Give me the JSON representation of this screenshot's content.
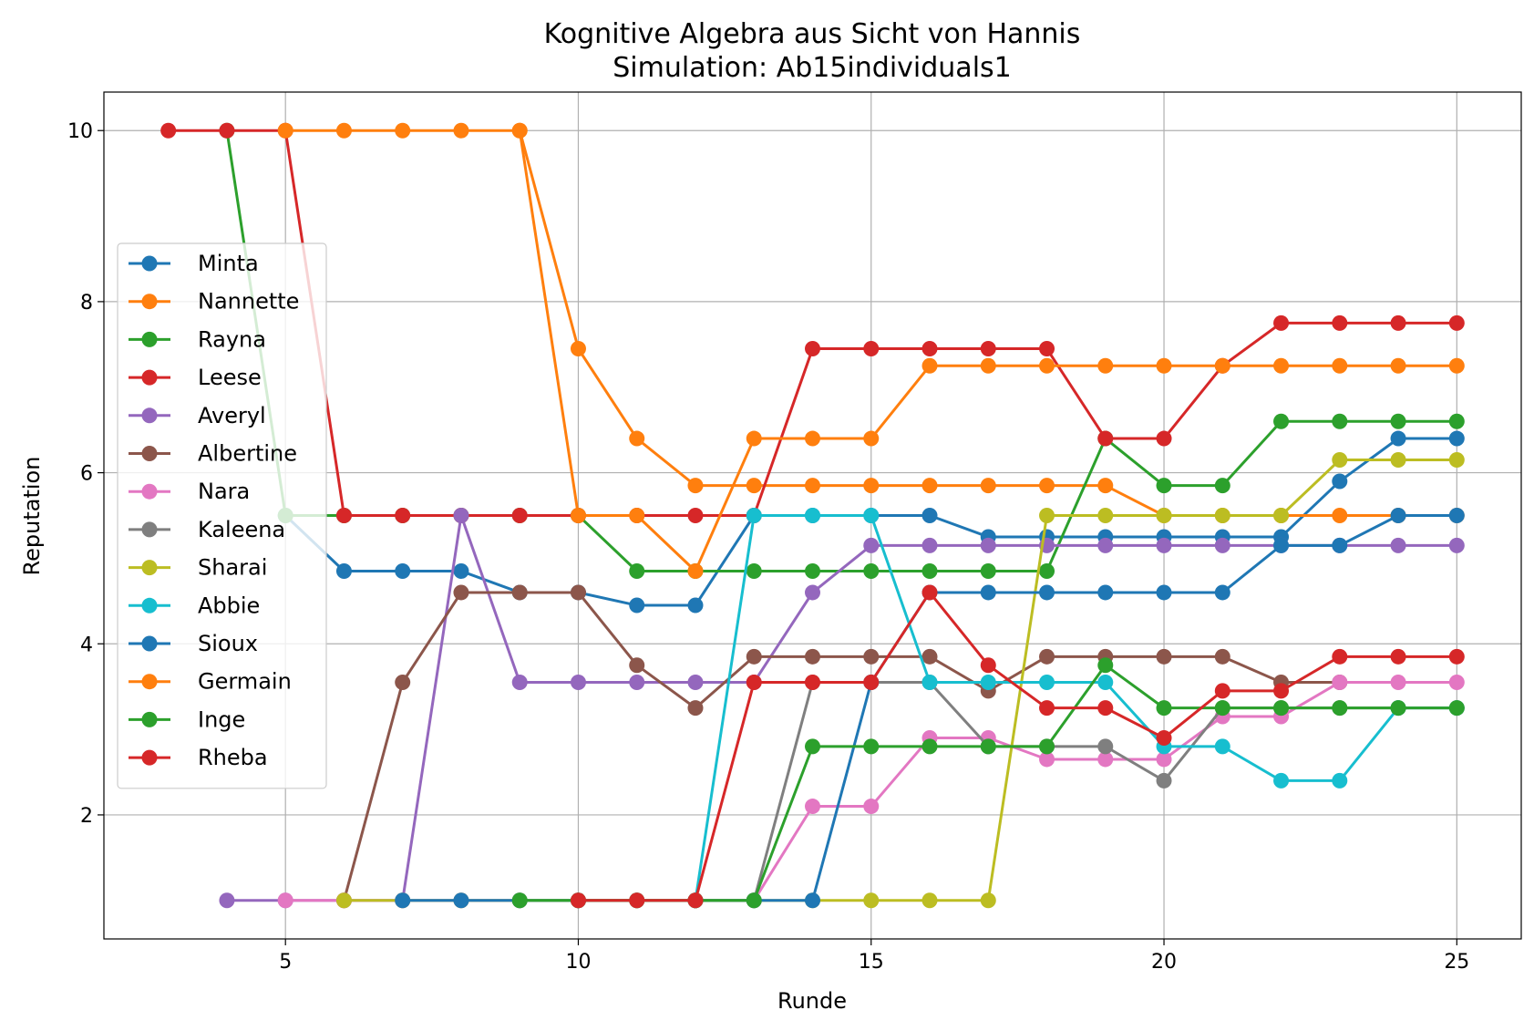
{
  "chart_data": {
    "type": "line",
    "title": "Kognitive Algebra aus Sicht von Hannis",
    "subtitle": "Simulation: Ab15individuals1",
    "xlabel": "Runde",
    "ylabel": "Reputation",
    "xlim": [
      1.9,
      26.1
    ],
    "ylim": [
      0.55,
      10.45
    ],
    "xticks": [
      5,
      10,
      15,
      20,
      25
    ],
    "yticks": [
      2,
      4,
      6,
      8,
      10
    ],
    "grid": true,
    "legend_position": "center-left",
    "series": [
      {
        "name": "Minta",
        "color": "#1f77b4",
        "x": [
          5,
          6,
          7,
          8,
          9,
          10,
          11,
          12,
          13,
          14,
          15,
          16,
          17,
          18,
          19,
          20,
          21,
          22,
          23,
          24,
          25
        ],
        "y": [
          5.5,
          4.85,
          4.85,
          4.85,
          4.6,
          4.6,
          4.45,
          4.45,
          5.5,
          5.5,
          5.5,
          5.5,
          5.25,
          5.25,
          5.25,
          5.25,
          5.25,
          5.25,
          5.9,
          6.4,
          6.4
        ]
      },
      {
        "name": "Nannette",
        "color": "#ff7f0e",
        "x": [
          9,
          10,
          11,
          12,
          13,
          14,
          15,
          16,
          17,
          18,
          19,
          20,
          21,
          22,
          23,
          24,
          25
        ],
        "y": [
          10,
          7.45,
          6.4,
          5.85,
          5.85,
          5.85,
          5.85,
          5.85,
          5.85,
          5.85,
          5.85,
          5.5,
          5.5,
          5.5,
          5.5,
          5.5,
          5.5
        ]
      },
      {
        "name": "Rayna",
        "color": "#2ca02c",
        "x": [
          4,
          5,
          6,
          7,
          8,
          9,
          10,
          11,
          12,
          13,
          14,
          15,
          16,
          17,
          18,
          19,
          20,
          21,
          22,
          23,
          24,
          25
        ],
        "y": [
          10,
          5.5,
          5.5,
          5.5,
          5.5,
          5.5,
          5.5,
          4.85,
          4.85,
          4.85,
          4.85,
          4.85,
          4.85,
          4.85,
          4.85,
          6.4,
          5.85,
          5.85,
          6.6,
          6.6,
          6.6,
          6.6
        ]
      },
      {
        "name": "Leese",
        "color": "#d62728",
        "x": [
          3,
          4,
          5,
          6,
          7,
          8,
          9,
          10,
          11,
          12,
          13,
          14,
          15,
          16,
          17,
          18,
          19,
          20,
          21,
          22,
          23,
          24,
          25
        ],
        "y": [
          10,
          10,
          10,
          5.5,
          5.5,
          5.5,
          5.5,
          5.5,
          5.5,
          5.5,
          5.5,
          7.45,
          7.45,
          7.45,
          7.45,
          7.45,
          6.4,
          6.4,
          7.25,
          7.75,
          7.75,
          7.75,
          7.75
        ]
      },
      {
        "name": "Averyl",
        "color": "#9467bd",
        "x": [
          4,
          5,
          6,
          7,
          8,
          9,
          10,
          11,
          12,
          13,
          14,
          15,
          16,
          17,
          18,
          19,
          20,
          21,
          22,
          23,
          24,
          25
        ],
        "y": [
          1,
          1,
          1,
          1,
          5.5,
          3.55,
          3.55,
          3.55,
          3.55,
          3.55,
          4.6,
          5.15,
          5.15,
          5.15,
          5.15,
          5.15,
          5.15,
          5.15,
          5.15,
          5.15,
          5.15,
          5.15
        ]
      },
      {
        "name": "Albertine",
        "color": "#8c564b",
        "x": [
          6,
          7,
          8,
          9,
          10,
          11,
          12,
          13,
          14,
          15,
          16,
          17,
          18,
          19,
          20,
          21,
          22,
          23
        ],
        "y": [
          1,
          3.55,
          4.6,
          4.6,
          4.6,
          3.75,
          3.25,
          3.85,
          3.85,
          3.85,
          3.85,
          3.45,
          3.85,
          3.85,
          3.85,
          3.85,
          3.55,
          3.55
        ]
      },
      {
        "name": "Nara",
        "color": "#e377c2",
        "x": [
          5,
          6,
          7,
          8,
          9,
          10,
          11,
          12,
          13,
          14,
          15,
          16,
          17,
          18,
          19,
          20,
          21,
          22,
          23,
          24,
          25
        ],
        "y": [
          1,
          1,
          1,
          1,
          1,
          1,
          1,
          1,
          1,
          2.1,
          2.1,
          2.9,
          2.9,
          2.65,
          2.65,
          2.65,
          3.15,
          3.15,
          3.55,
          3.55,
          3.55
        ]
      },
      {
        "name": "Kaleena",
        "color": "#7f7f7f",
        "x": [
          12,
          13,
          14,
          15,
          16,
          17,
          18,
          19,
          20,
          21,
          22,
          23,
          24,
          25
        ],
        "y": [
          1,
          1,
          3.55,
          3.55,
          3.55,
          2.8,
          2.8,
          2.8,
          2.4,
          3.25,
          3.25,
          3.25,
          3.25,
          3.25
        ]
      },
      {
        "name": "Sharai",
        "color": "#bcbd22",
        "x": [
          6,
          7,
          8,
          9,
          10,
          11,
          12,
          13,
          14,
          15,
          16,
          17,
          18,
          19,
          20,
          21,
          22,
          23,
          24,
          25
        ],
        "y": [
          1,
          1,
          1,
          1,
          1,
          1,
          1,
          1,
          1,
          1,
          1,
          1,
          5.5,
          5.5,
          5.5,
          5.5,
          5.5,
          6.15,
          6.15,
          6.15
        ]
      },
      {
        "name": "Abbie",
        "color": "#17becf",
        "x": [
          12,
          13,
          14,
          15,
          16,
          17,
          18,
          19,
          20,
          21,
          22,
          23,
          24,
          25
        ],
        "y": [
          1,
          5.5,
          5.5,
          5.5,
          3.55,
          3.55,
          3.55,
          3.55,
          2.8,
          2.8,
          2.4,
          2.4,
          3.25,
          3.25
        ]
      },
      {
        "name": "Sioux",
        "color": "#1f77b4",
        "x": [
          7,
          8,
          9,
          10,
          11,
          12,
          13,
          14,
          15,
          16,
          17,
          18,
          19,
          20,
          21,
          22,
          23,
          24,
          25
        ],
        "y": [
          1,
          1,
          1,
          1,
          1,
          1,
          1,
          1,
          3.55,
          4.6,
          4.6,
          4.6,
          4.6,
          4.6,
          4.6,
          5.15,
          5.15,
          5.5,
          5.5
        ]
      },
      {
        "name": "Germain",
        "color": "#ff7f0e",
        "x": [
          5,
          6,
          7,
          8,
          9,
          10,
          11,
          12,
          13,
          14,
          15,
          16,
          17,
          18,
          19,
          20,
          21,
          22,
          23,
          24,
          25
        ],
        "y": [
          10,
          10,
          10,
          10,
          10,
          5.5,
          5.5,
          4.85,
          6.4,
          6.4,
          6.4,
          7.25,
          7.25,
          7.25,
          7.25,
          7.25,
          7.25,
          7.25,
          7.25,
          7.25,
          7.25
        ]
      },
      {
        "name": "Inge",
        "color": "#2ca02c",
        "x": [
          9,
          10,
          11,
          12,
          13,
          14,
          15,
          16,
          17,
          18,
          19,
          20,
          21,
          22,
          23,
          24,
          25
        ],
        "y": [
          1,
          1,
          1,
          1,
          1,
          2.8,
          2.8,
          2.8,
          2.8,
          2.8,
          3.75,
          3.25,
          3.25,
          3.25,
          3.25,
          3.25,
          3.25
        ]
      },
      {
        "name": "Rheba",
        "color": "#d62728",
        "x": [
          10,
          11,
          12,
          13,
          14,
          15,
          16,
          17,
          18,
          19,
          20,
          21,
          22,
          23,
          24,
          25
        ],
        "y": [
          1,
          1,
          1,
          3.55,
          3.55,
          3.55,
          4.6,
          3.75,
          3.25,
          3.25,
          2.9,
          3.45,
          3.45,
          3.85,
          3.85,
          3.85
        ]
      }
    ]
  }
}
